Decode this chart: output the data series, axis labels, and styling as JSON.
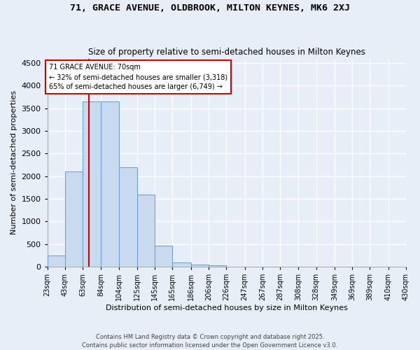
{
  "title": "71, GRACE AVENUE, OLDBROOK, MILTON KEYNES, MK6 2XJ",
  "subtitle": "Size of property relative to semi-detached houses in Milton Keynes",
  "xlabel": "Distribution of semi-detached houses by size in Milton Keynes",
  "ylabel": "Number of semi-detached properties",
  "footer": "Contains HM Land Registry data © Crown copyright and database right 2025.\nContains public sector information licensed under the Open Government Licence v3.0.",
  "bin_edges": [
    23,
    43,
    63,
    84,
    104,
    125,
    145,
    165,
    186,
    206,
    226,
    247,
    267,
    287,
    308,
    328,
    349,
    369,
    389,
    410,
    430
  ],
  "bar_heights": [
    250,
    2100,
    3650,
    3650,
    2200,
    1600,
    460,
    100,
    50,
    30,
    0,
    0,
    0,
    0,
    0,
    0,
    0,
    0,
    0,
    0
  ],
  "bar_color": "#c9d9f0",
  "bar_edge_color": "#6699cc",
  "property_size": 70,
  "property_name": "71 GRACE AVENUE: 70sqm",
  "pct_smaller": 32,
  "n_smaller": 3318,
  "pct_larger": 65,
  "n_larger": 6749,
  "vline_color": "#cc0000",
  "annotation_box_color": "#cc0000",
  "background_color": "#e8eef8",
  "grid_color": "#ffffff",
  "ylim": [
    0,
    4600
  ],
  "yticks": [
    0,
    500,
    1000,
    1500,
    2000,
    2500,
    3000,
    3500,
    4000,
    4500
  ]
}
